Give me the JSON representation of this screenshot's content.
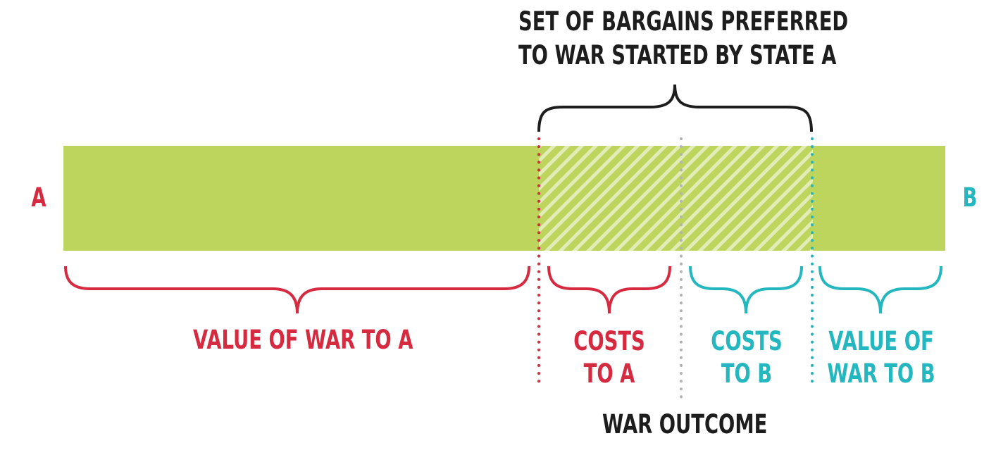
{
  "colors": {
    "bar": "#bdd45d",
    "hatch": "#d9e7a3",
    "stateA": "#d52a3f",
    "stateB": "#24b7bf",
    "neutral": "#1d1d1d",
    "outcome_line": "#b3b3b3"
  },
  "title_lines": [
    "SET OF BARGAINS PREFERRED",
    "TO WAR STARTED BY STATE A"
  ],
  "endpoint_a": "A",
  "endpoint_b": "B",
  "value_war_a": "VALUE OF WAR TO A",
  "costs_a_lines": [
    "COSTS",
    "TO A"
  ],
  "costs_b_lines": [
    "COSTS",
    "TO B"
  ],
  "value_war_b_lines": [
    "VALUE OF",
    "WAR TO B"
  ],
  "war_outcome": "WAR OUTCOME"
}
